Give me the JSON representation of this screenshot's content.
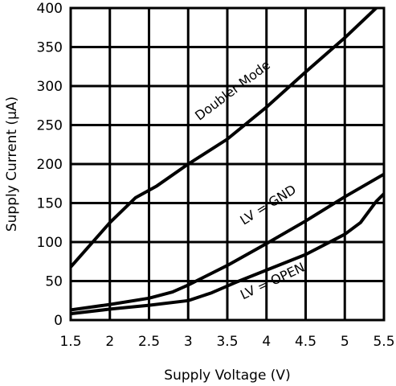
{
  "chart_data": {
    "type": "line",
    "xlabel": "Supply Voltage (V)",
    "ylabel": "Supply Current (μA)",
    "xlim": [
      1.5,
      5.5
    ],
    "ylim": [
      0,
      400
    ],
    "xticks": [
      "1.5",
      "2",
      "2.5",
      "3",
      "3.5",
      "4",
      "4.5",
      "5",
      "5.5"
    ],
    "yticks": [
      "0",
      "50",
      "100",
      "150",
      "200",
      "250",
      "300",
      "350",
      "400"
    ],
    "grid": true,
    "series": [
      {
        "name": "Doubler Mode",
        "x": [
          1.5,
          2.0,
          2.33,
          2.6,
          3.0,
          3.5,
          4.0,
          4.5,
          5.0,
          5.4
        ],
        "y": [
          68,
          125,
          157,
          172,
          200,
          232,
          273,
          318,
          362,
          400
        ]
      },
      {
        "name": "LV = GND",
        "x": [
          1.5,
          2.0,
          2.5,
          2.8,
          3.0,
          3.5,
          4.0,
          4.5,
          5.0,
          5.5
        ],
        "y": [
          13,
          20,
          28,
          36,
          45,
          70,
          98,
          127,
          158,
          187
        ]
      },
      {
        "name": "LV = OPEN",
        "x": [
          1.5,
          2.0,
          2.5,
          3.0,
          3.3,
          3.6,
          4.0,
          4.5,
          5.0,
          5.2,
          5.4,
          5.5
        ],
        "y": [
          8,
          14,
          19,
          25,
          35,
          48,
          64,
          84,
          110,
          125,
          152,
          162
        ]
      }
    ]
  }
}
